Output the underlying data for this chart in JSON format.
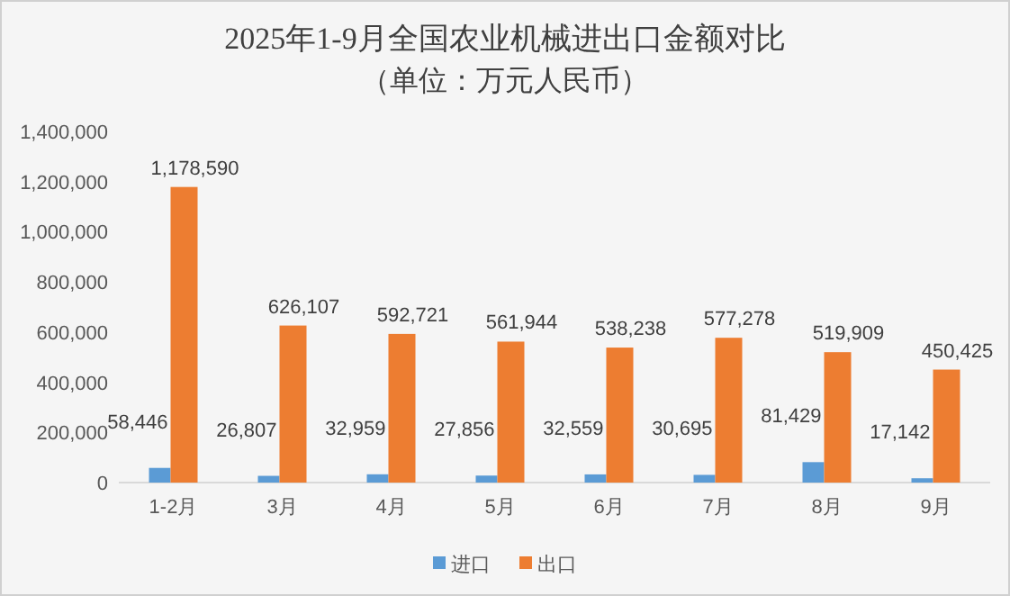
{
  "chart_data": {
    "type": "bar",
    "title": "2025年1-9月全国农业机械进出口金额对比",
    "subtitle": "（单位：万元人民币）",
    "categories": [
      "1-2月",
      "3月",
      "4月",
      "5月",
      "6月",
      "7月",
      "8月",
      "9月"
    ],
    "series": [
      {
        "name": "进口",
        "color": "#5b9bd5",
        "values": [
          58446,
          26807,
          32959,
          27856,
          32559,
          30695,
          81429,
          17142
        ],
        "value_labels": [
          "58,446",
          "26,807",
          "32,959",
          "27,856",
          "32,559",
          "30,695",
          "81,429",
          "17,142"
        ]
      },
      {
        "name": "出口",
        "color": "#ed7d31",
        "values": [
          1178590,
          626107,
          592721,
          561944,
          538238,
          577278,
          519909,
          450425
        ],
        "value_labels": [
          "1,178,590",
          "626,107",
          "592,721",
          "561,944",
          "538,238",
          "577,278",
          "519,909",
          "450,425"
        ]
      }
    ],
    "ylim": [
      0,
      1400000
    ],
    "yticks": [
      {
        "value": 0,
        "label": "0"
      },
      {
        "value": 200000,
        "label": "200,000"
      },
      {
        "value": 400000,
        "label": "400,000"
      },
      {
        "value": 600000,
        "label": "600,000"
      },
      {
        "value": 800000,
        "label": "800,000"
      },
      {
        "value": 1000000,
        "label": "1,000,000"
      },
      {
        "value": 1200000,
        "label": "1,200,000"
      },
      {
        "value": 1400000,
        "label": "1,400,000"
      }
    ],
    "legend": "bottom",
    "grid": false
  }
}
